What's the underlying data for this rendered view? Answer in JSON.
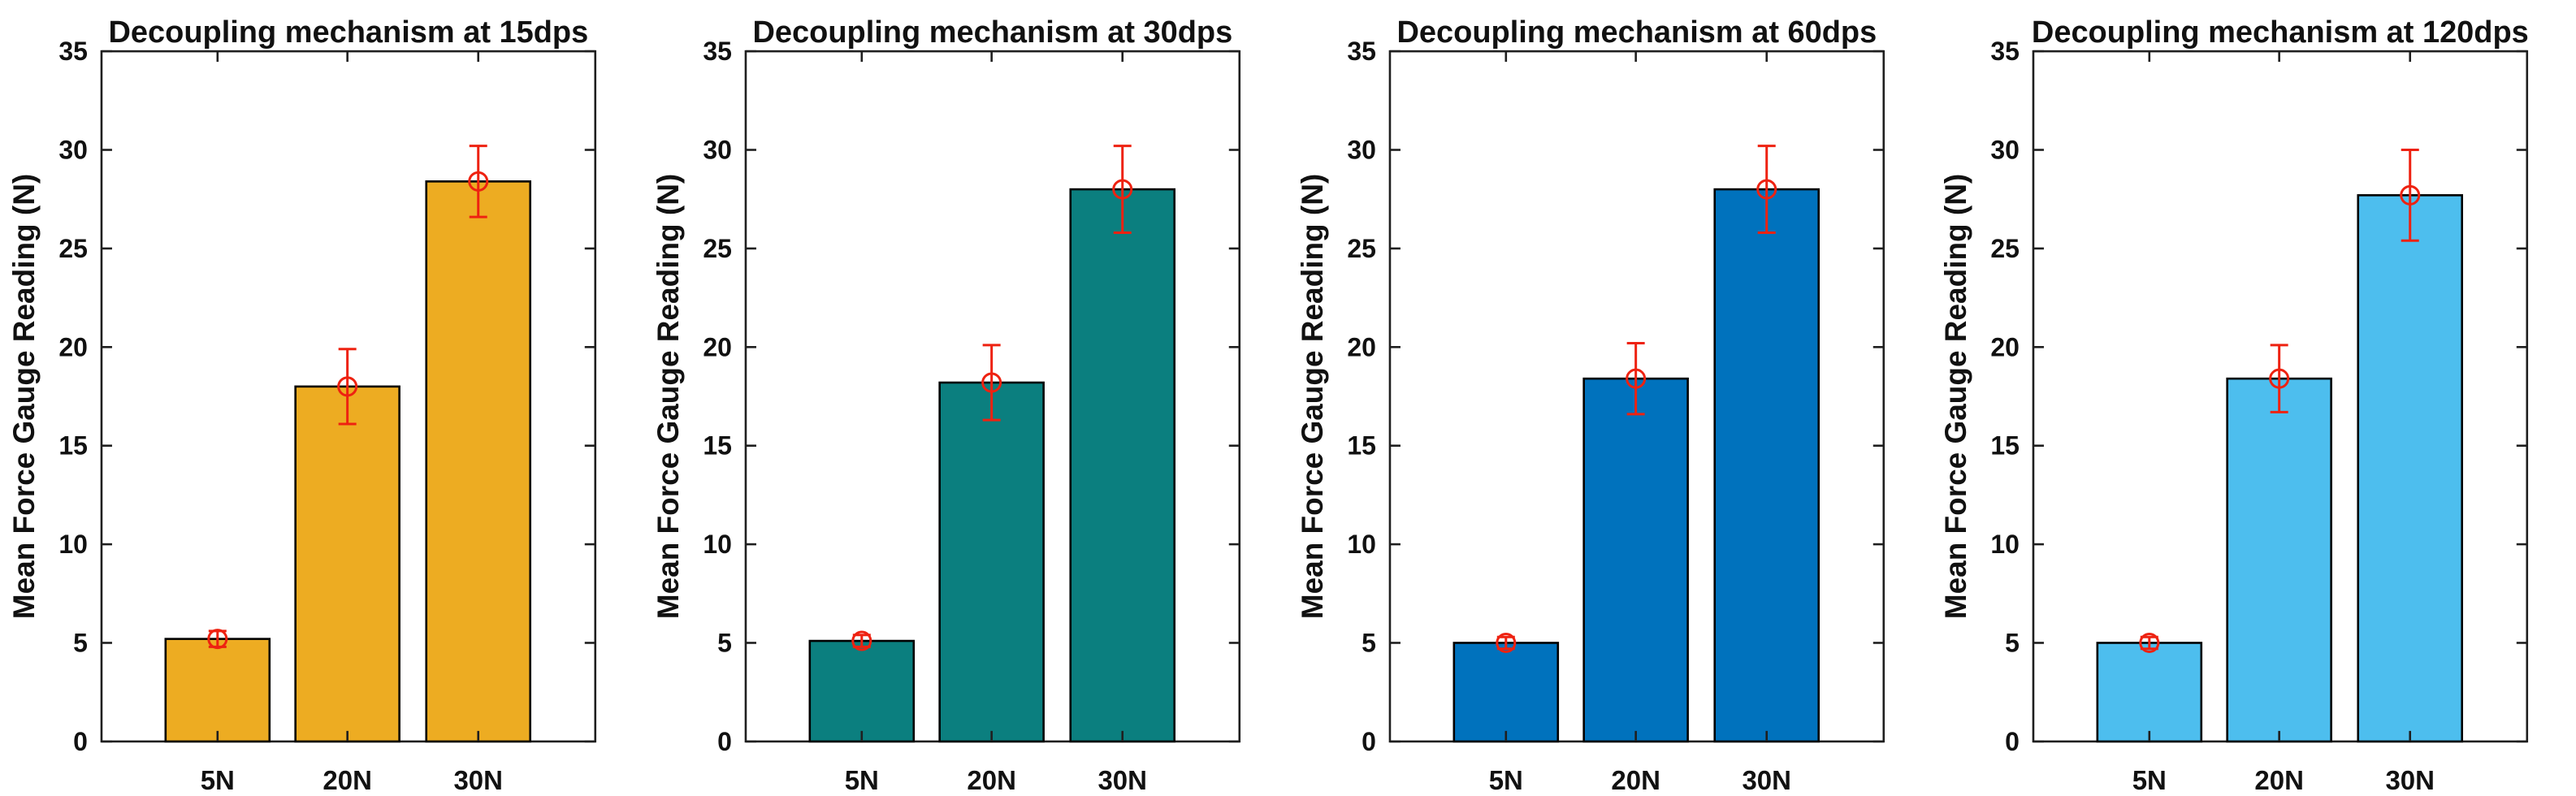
{
  "figure": {
    "background": "#ffffff",
    "axis_color": "#1f1f1f",
    "text_color": "#111111"
  },
  "chart_data": [
    {
      "type": "bar",
      "title": "Decoupling mechanism at 15dps",
      "categories": [
        "5N",
        "20N",
        "30N"
      ],
      "values": [
        5.2,
        18.0,
        28.4
      ],
      "errors": [
        0.4,
        1.9,
        1.8
      ],
      "xlabel": "",
      "ylabel": "Mean Force Gauge Reading (N)",
      "ylim": [
        0,
        35
      ],
      "yticks": [
        0,
        5,
        10,
        15,
        20,
        25,
        30,
        35
      ],
      "grid": false,
      "legend": null,
      "bar_color": "#EDAC22",
      "bar_edge_color": "#000000",
      "error_color": "#EE2211",
      "error_marker": "open-circle"
    },
    {
      "type": "bar",
      "title": "Decoupling mechanism at 30dps",
      "categories": [
        "5N",
        "20N",
        "30N"
      ],
      "values": [
        5.1,
        18.2,
        28.0
      ],
      "errors": [
        0.3,
        1.9,
        2.2
      ],
      "xlabel": "",
      "ylabel": "Mean Force Gauge Reading (N)",
      "ylim": [
        0,
        35
      ],
      "yticks": [
        0,
        5,
        10,
        15,
        20,
        25,
        30,
        35
      ],
      "grid": false,
      "legend": null,
      "bar_color": "#0B7F7F",
      "bar_edge_color": "#000000",
      "error_color": "#EE2211",
      "error_marker": "open-circle"
    },
    {
      "type": "bar",
      "title": "Decoupling mechanism at 60dps",
      "categories": [
        "5N",
        "20N",
        "30N"
      ],
      "values": [
        5.0,
        18.4,
        28.0
      ],
      "errors": [
        0.3,
        1.8,
        2.2
      ],
      "xlabel": "",
      "ylabel": "Mean Force Gauge Reading (N)",
      "ylim": [
        0,
        35
      ],
      "yticks": [
        0,
        5,
        10,
        15,
        20,
        25,
        30,
        35
      ],
      "grid": false,
      "legend": null,
      "bar_color": "#0072BD",
      "bar_edge_color": "#000000",
      "error_color": "#EE2211",
      "error_marker": "open-circle"
    },
    {
      "type": "bar",
      "title": "Decoupling mechanism at 120dps",
      "categories": [
        "5N",
        "20N",
        "30N"
      ],
      "values": [
        5.0,
        18.4,
        27.7
      ],
      "errors": [
        0.3,
        1.7,
        2.3
      ],
      "xlabel": "",
      "ylabel": "Mean Force Gauge Reading (N)",
      "ylim": [
        0,
        35
      ],
      "yticks": [
        0,
        5,
        10,
        15,
        20,
        25,
        30,
        35
      ],
      "grid": false,
      "legend": null,
      "bar_color": "#4DBEEE",
      "bar_edge_color": "#000000",
      "error_color": "#EE2211",
      "error_marker": "open-circle"
    }
  ]
}
